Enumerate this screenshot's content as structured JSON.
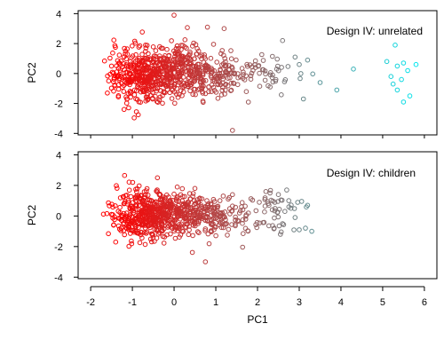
{
  "chart_data": [
    {
      "type": "scatter",
      "title": "Design IV: unrelated",
      "xlabel": "",
      "ylabel": "PC2",
      "xlim": [
        -2.3,
        6.3
      ],
      "ylim": [
        -4.1,
        4.2
      ],
      "yticks": [
        -4,
        -2,
        0,
        2,
        4
      ],
      "grid": false,
      "legend": "none",
      "color_gradient": {
        "low": "#ff0000",
        "mid": "#9a5a5a",
        "high": "#00e5ee",
        "by": "x"
      },
      "seed": 7,
      "clusters": [
        {
          "cx": -0.65,
          "cy": 0.1,
          "sx": 0.45,
          "sy": 0.95,
          "n": 420
        },
        {
          "cx": 0.2,
          "cy": 0.1,
          "sx": 0.5,
          "sy": 0.85,
          "n": 250
        },
        {
          "cx": 1.1,
          "cy": 0.0,
          "sx": 0.45,
          "sy": 0.75,
          "n": 110
        },
        {
          "cx": 2.3,
          "cy": 0.1,
          "sx": 0.4,
          "sy": 0.7,
          "n": 40
        }
      ],
      "points": [
        [
          -1.6,
          -1.3
        ],
        [
          -1.5,
          0.5
        ],
        [
          -1.2,
          -2.4
        ],
        [
          0.0,
          3.9
        ],
        [
          0.8,
          3.1
        ],
        [
          1.2,
          3.0
        ],
        [
          1.4,
          -3.8
        ],
        [
          2.6,
          2.2
        ],
        [
          2.9,
          1.1
        ],
        [
          3.0,
          0.6
        ],
        [
          3.1,
          -1.7
        ],
        [
          3.2,
          0.9
        ],
        [
          3.5,
          -0.6
        ],
        [
          3.9,
          -1.1
        ],
        [
          4.3,
          0.3
        ],
        [
          5.3,
          1.9
        ],
        [
          5.35,
          0.5
        ],
        [
          5.5,
          0.7
        ],
        [
          5.2,
          -0.2
        ],
        [
          5.25,
          -0.7
        ],
        [
          5.35,
          -1.1
        ],
        [
          5.45,
          -0.4
        ],
        [
          5.6,
          0.2
        ],
        [
          5.65,
          -1.5
        ],
        [
          5.8,
          0.6
        ],
        [
          5.1,
          0.8
        ],
        [
          5.5,
          -1.9
        ]
      ]
    },
    {
      "type": "scatter",
      "title": "Design IV: children",
      "xlabel": "PC1",
      "ylabel": "PC2",
      "xlim": [
        -2.3,
        6.3
      ],
      "ylim": [
        -4.1,
        4.2
      ],
      "xticks": [
        -2,
        -1,
        0,
        1,
        2,
        3,
        4,
        5,
        6
      ],
      "yticks": [
        -4,
        -2,
        0,
        2,
        4
      ],
      "grid": false,
      "legend": "none",
      "color_gradient": {
        "low": "#ff0000",
        "mid": "#9a5a5a",
        "high": "#00e5ee",
        "by": "x"
      },
      "seed": 19,
      "clusters": [
        {
          "cx": -0.7,
          "cy": 0.1,
          "sx": 0.4,
          "sy": 0.8,
          "n": 360
        },
        {
          "cx": 0.1,
          "cy": 0.1,
          "sx": 0.45,
          "sy": 0.75,
          "n": 260
        },
        {
          "cx": 1.0,
          "cy": 0.0,
          "sx": 0.45,
          "sy": 0.65,
          "n": 120
        },
        {
          "cx": 2.4,
          "cy": 0.2,
          "sx": 0.35,
          "sy": 0.6,
          "n": 45
        }
      ],
      "points": [
        [
          -1.5,
          0.1
        ],
        [
          -1.45,
          -0.6
        ],
        [
          -1.4,
          -1.7
        ],
        [
          -0.4,
          2.5
        ],
        [
          0.75,
          -3.0
        ],
        [
          0.5,
          1.8
        ],
        [
          1.1,
          1.0
        ],
        [
          2.2,
          1.6
        ],
        [
          2.3,
          1.5
        ],
        [
          2.5,
          1.4
        ],
        [
          2.7,
          1.7
        ],
        [
          2.75,
          1.0
        ],
        [
          2.8,
          0.5
        ],
        [
          2.9,
          -0.1
        ],
        [
          3.0,
          -0.9
        ],
        [
          3.15,
          -0.8
        ],
        [
          3.2,
          0.7
        ],
        [
          3.3,
          -1.0
        ],
        [
          2.6,
          -0.5
        ],
        [
          2.55,
          -1.2
        ],
        [
          2.4,
          -0.8
        ]
      ]
    }
  ]
}
